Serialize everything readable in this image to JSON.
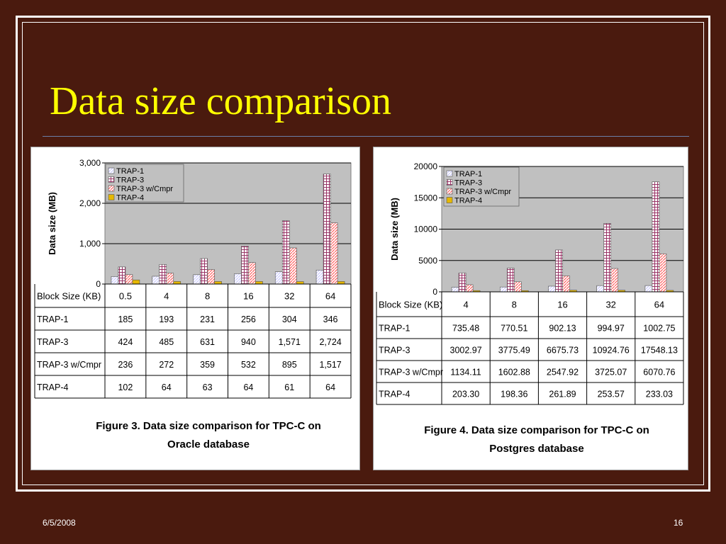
{
  "slide": {
    "title": "Data size comparison",
    "date": "6/5/2008",
    "page_number": "16"
  },
  "colors": {
    "background": "#4a1a0e",
    "title": "#ffff00",
    "plot_area": "#c0c0c0",
    "TRAP-1": "#ccccff",
    "TRAP-3": "#993366",
    "TRAP-3 w/Cmpr": "#ff6666",
    "TRAP-4": "#e6b800"
  },
  "chart_data": [
    {
      "type": "bar",
      "ylabel": "Data size (MB)",
      "xlabel": "Block Size (KB)",
      "categories": [
        "0.5",
        "4",
        "8",
        "16",
        "32",
        "64"
      ],
      "yticks": [
        "0",
        "1,000",
        "2,000",
        "3,000"
      ],
      "ylim": [
        0,
        3000
      ],
      "grid": true,
      "legend_position": "top-left",
      "series": [
        {
          "name": "TRAP-1",
          "values": [
            185,
            193,
            231,
            256,
            304,
            346
          ],
          "labels": [
            "185",
            "193",
            "231",
            "256",
            "304",
            "346"
          ]
        },
        {
          "name": "TRAP-3",
          "values": [
            424,
            485,
            631,
            940,
            1571,
            2724
          ],
          "labels": [
            "424",
            "485",
            "631",
            "940",
            "1,571",
            "2,724"
          ]
        },
        {
          "name": "TRAP-3 w/Cmpr",
          "values": [
            236,
            272,
            359,
            532,
            895,
            1517
          ],
          "labels": [
            "236",
            "272",
            "359",
            "532",
            "895",
            "1,517"
          ]
        },
        {
          "name": "TRAP-4",
          "values": [
            102,
            64,
            63,
            64,
            61,
            64
          ],
          "labels": [
            "102",
            "64",
            "63",
            "64",
            "61",
            "64"
          ]
        }
      ],
      "caption_lines": [
        "Figure 3. Data size comparison for TPC-C on",
        "Oracle database"
      ]
    },
    {
      "type": "bar",
      "ylabel": "Data size (MB)",
      "xlabel": "Block Size (KB)",
      "categories": [
        "4",
        "8",
        "16",
        "32",
        "64"
      ],
      "yticks": [
        "0",
        "5000",
        "10000",
        "15000",
        "20000"
      ],
      "ylim": [
        0,
        20000
      ],
      "grid": true,
      "legend_position": "top-left",
      "series": [
        {
          "name": "TRAP-1",
          "values": [
            735.48,
            770.51,
            902.13,
            994.97,
            1002.75
          ],
          "labels": [
            "735.48",
            "770.51",
            "902.13",
            "994.97",
            "1002.75"
          ]
        },
        {
          "name": "TRAP-3",
          "values": [
            3002.97,
            3775.49,
            6675.73,
            10924.76,
            17548.13
          ],
          "labels": [
            "3002.97",
            "3775.49",
            "6675.73",
            "10924.76",
            "17548.13"
          ]
        },
        {
          "name": "TRAP-3 w/Cmpr",
          "values": [
            1134.11,
            1602.88,
            2547.92,
            3725.07,
            6070.76
          ],
          "labels": [
            "1134.11",
            "1602.88",
            "2547.92",
            "3725.07",
            "6070.76"
          ]
        },
        {
          "name": "TRAP-4",
          "values": [
            203.3,
            198.36,
            261.89,
            253.57,
            233.03
          ],
          "labels": [
            "203.30",
            "198.36",
            "261.89",
            "253.57",
            "233.03"
          ]
        }
      ],
      "caption_lines": [
        "Figure 4. Data size comparison for TPC-C on",
        "Postgres database"
      ]
    }
  ]
}
